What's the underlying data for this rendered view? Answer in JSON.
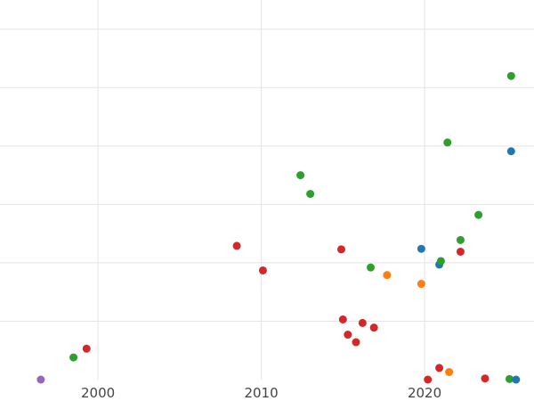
{
  "chart_data": {
    "type": "scatter",
    "title": "",
    "xlabel": "",
    "ylabel": "",
    "xlim": [
      1994.0,
      2026.7
    ],
    "ylim": [
      0,
      65
    ],
    "x_ticks": [
      2000,
      2010,
      2020
    ],
    "x_tick_labels": [
      "2000",
      "2010",
      "2020"
    ],
    "y_gridlines": [
      10,
      20,
      30,
      40,
      50,
      60
    ],
    "grid": true,
    "legend": "none",
    "colors": {
      "blue": "#1f77b4",
      "orange": "#ff7f0e",
      "green": "#2ca02c",
      "red": "#d62728",
      "purple": "#9467bd"
    },
    "points": [
      {
        "x": 1996.5,
        "y": 0.0,
        "color": "purple"
      },
      {
        "x": 1998.5,
        "y": 3.8,
        "color": "green"
      },
      {
        "x": 1999.3,
        "y": 5.3,
        "color": "red"
      },
      {
        "x": 2008.5,
        "y": 22.9,
        "color": "red"
      },
      {
        "x": 2010.1,
        "y": 18.7,
        "color": "red"
      },
      {
        "x": 2012.4,
        "y": 35.0,
        "color": "green"
      },
      {
        "x": 2013.0,
        "y": 31.8,
        "color": "green"
      },
      {
        "x": 2014.9,
        "y": 22.3,
        "color": "red"
      },
      {
        "x": 2015.0,
        "y": 10.3,
        "color": "red"
      },
      {
        "x": 2015.3,
        "y": 7.7,
        "color": "red"
      },
      {
        "x": 2015.8,
        "y": 6.4,
        "color": "red"
      },
      {
        "x": 2016.2,
        "y": 9.7,
        "color": "red"
      },
      {
        "x": 2016.7,
        "y": 19.2,
        "color": "green"
      },
      {
        "x": 2016.9,
        "y": 8.9,
        "color": "red"
      },
      {
        "x": 2017.7,
        "y": 17.9,
        "color": "orange"
      },
      {
        "x": 2019.8,
        "y": 22.4,
        "color": "blue"
      },
      {
        "x": 2019.8,
        "y": 16.4,
        "color": "orange"
      },
      {
        "x": 2020.2,
        "y": 0.0,
        "color": "red"
      },
      {
        "x": 2020.9,
        "y": 2.0,
        "color": "red"
      },
      {
        "x": 2020.9,
        "y": 19.7,
        "color": "blue"
      },
      {
        "x": 2021.0,
        "y": 20.3,
        "color": "green"
      },
      {
        "x": 2021.4,
        "y": 40.6,
        "color": "green"
      },
      {
        "x": 2021.5,
        "y": 1.3,
        "color": "orange"
      },
      {
        "x": 2022.2,
        "y": 23.9,
        "color": "green"
      },
      {
        "x": 2022.2,
        "y": 21.9,
        "color": "red"
      },
      {
        "x": 2023.3,
        "y": 28.2,
        "color": "green"
      },
      {
        "x": 2023.7,
        "y": 0.2,
        "color": "red"
      },
      {
        "x": 2025.2,
        "y": 0.1,
        "color": "green"
      },
      {
        "x": 2025.3,
        "y": 52.0,
        "color": "green"
      },
      {
        "x": 2025.3,
        "y": 39.1,
        "color": "blue"
      },
      {
        "x": 2025.6,
        "y": 0.0,
        "color": "blue"
      }
    ]
  }
}
